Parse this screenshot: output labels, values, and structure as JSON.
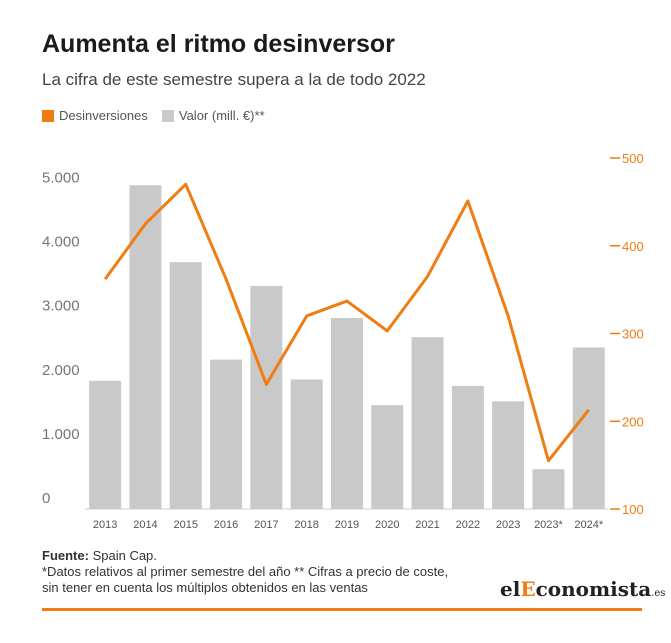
{
  "header": {
    "title": "Aumenta el ritmo desinversor",
    "subtitle": "La cifra de este semestre supera a la de todo 2022"
  },
  "legend": {
    "line_label": "Desinversiones",
    "bar_label": "Valor (mill. €)**"
  },
  "colors": {
    "line": "#f07c13",
    "bar": "#c9c9c9",
    "axis_text": "#777777"
  },
  "chart_data": {
    "type": "bar",
    "categories": [
      "2013",
      "2014",
      "2015",
      "2016",
      "2017",
      "2018",
      "2019",
      "2020",
      "2021",
      "2022",
      "2023",
      "2023*",
      "2024*"
    ],
    "series": [
      {
        "name": "Valor (mill. €)**",
        "type": "bar",
        "axis": "left",
        "values": [
          2000,
          5050,
          3850,
          2330,
          3480,
          2020,
          2980,
          1620,
          2680,
          1920,
          1680,
          620,
          2520
        ]
      },
      {
        "name": "Desinversiones",
        "type": "line",
        "axis": "right",
        "values": [
          362,
          425,
          470,
          362,
          242,
          320,
          337,
          303,
          365,
          451,
          320,
          155,
          213
        ]
      }
    ],
    "y_left": {
      "ticks": [
        "5.000",
        "4.000",
        "3.000",
        "2.000",
        "1.000",
        "0"
      ],
      "values": [
        5000,
        4000,
        3000,
        2000,
        1000,
        0
      ],
      "range": [
        0,
        5600
      ]
    },
    "y_right": {
      "ticks": [
        "500",
        "400",
        "300",
        "200",
        "100"
      ],
      "values": [
        500,
        400,
        300,
        200,
        100
      ],
      "range": [
        100,
        500
      ]
    },
    "grid": false,
    "legend_position": "top-left"
  },
  "footer": {
    "source_label": "Fuente:",
    "source_value": "Spain Cap.",
    "note1": "*Datos relativos al primer semestre del año ** Cifras a precio de coste,",
    "note2": "sin tener en cuenta los múltiplos obtenidos en las ventas"
  },
  "logo": {
    "part1": "el",
    "part2": "E",
    "part3": "conomista",
    "part4": ".es"
  }
}
